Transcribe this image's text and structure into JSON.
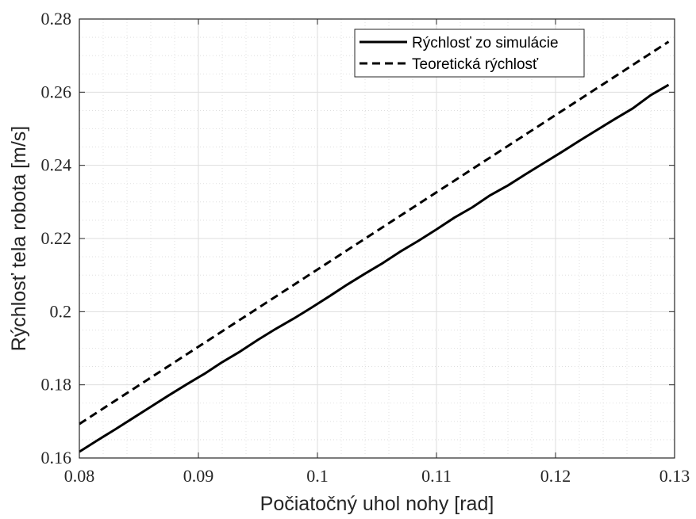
{
  "chart_data": {
    "type": "line",
    "title": "",
    "xlabel": "Počiatočný uhol nohy [rad]",
    "ylabel": "Rýchlosť tela robota [m/s]",
    "xlim": [
      0.08,
      0.13
    ],
    "ylim": [
      0.16,
      0.28
    ],
    "xticks": [
      0.08,
      0.09,
      0.1,
      0.11,
      0.12,
      0.13
    ],
    "yticks": [
      0.16,
      0.18,
      0.2,
      0.22,
      0.24,
      0.26,
      0.28
    ],
    "xtick_labels": [
      "0.08",
      "0.09",
      "0.1",
      "0.11",
      "0.12",
      "0.13"
    ],
    "ytick_labels": [
      "0.16",
      "0.18",
      "0.2",
      "0.22",
      "0.24",
      "0.26",
      "0.28"
    ],
    "grid": true,
    "minor_grid": true,
    "legend_position": "top-right",
    "series": [
      {
        "name": "Rýchlosť zo simulácie",
        "style": "solid",
        "color": "#000000",
        "x": [
          0.08,
          0.0815,
          0.083,
          0.0845,
          0.086,
          0.0875,
          0.089,
          0.0905,
          0.092,
          0.0935,
          0.095,
          0.0965,
          0.098,
          0.0995,
          0.101,
          0.1025,
          0.104,
          0.1055,
          0.107,
          0.1085,
          0.11,
          0.1115,
          0.113,
          0.1145,
          0.116,
          0.1175,
          0.119,
          0.1205,
          0.122,
          0.1235,
          0.125,
          0.1265,
          0.128,
          0.1295
        ],
        "y": [
          0.1617,
          0.1648,
          0.1678,
          0.1709,
          0.174,
          0.1771,
          0.1801,
          0.183,
          0.1862,
          0.1891,
          0.1923,
          0.1953,
          0.1981,
          0.2011,
          0.2042,
          0.2074,
          0.2104,
          0.2133,
          0.2165,
          0.2194,
          0.2225,
          0.2257,
          0.2285,
          0.2318,
          0.2345,
          0.2376,
          0.2406,
          0.2436,
          0.2467,
          0.2497,
          0.2527,
          0.2556,
          0.2592,
          0.262
        ]
      },
      {
        "name": "Teoretická rýchlosť",
        "style": "dashed",
        "color": "#000000",
        "x": [
          0.08,
          0.1295
        ],
        "y": [
          0.1693,
          0.2738
        ]
      }
    ]
  }
}
